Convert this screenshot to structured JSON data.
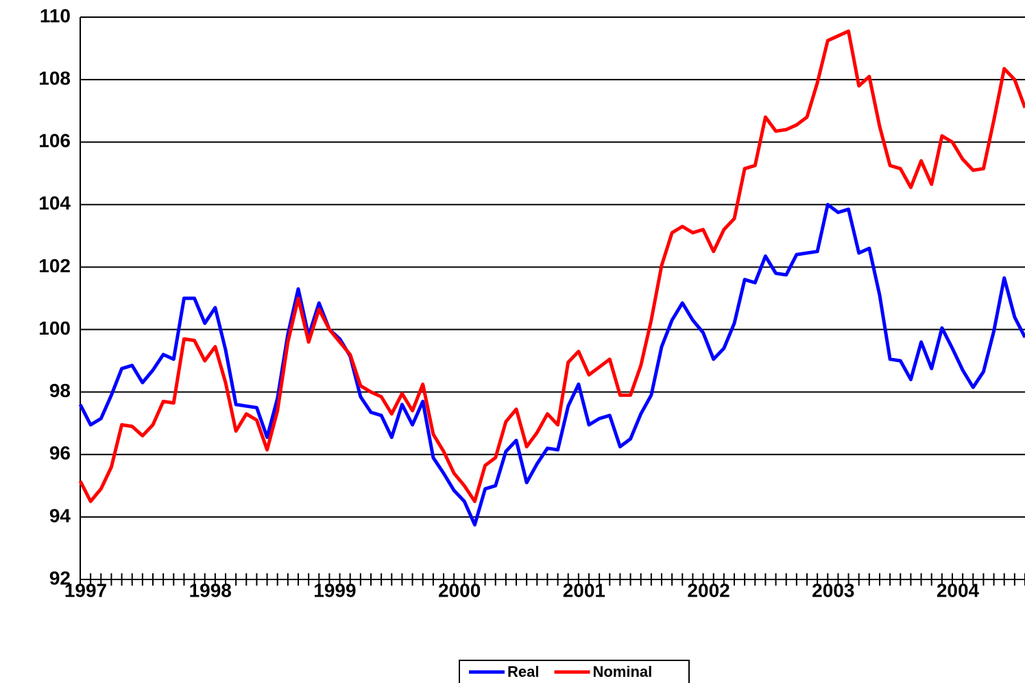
{
  "chart_data": {
    "type": "line",
    "categories": [
      "1997",
      null,
      null,
      null,
      null,
      null,
      null,
      null,
      null,
      null,
      null,
      null,
      "1998",
      null,
      null,
      null,
      null,
      null,
      null,
      null,
      null,
      null,
      null,
      null,
      "1999",
      null,
      null,
      null,
      null,
      null,
      null,
      null,
      null,
      null,
      null,
      null,
      "2000",
      null,
      null,
      null,
      null,
      null,
      null,
      null,
      null,
      null,
      null,
      null,
      "2001",
      null,
      null,
      null,
      null,
      null,
      null,
      null,
      null,
      null,
      null,
      null,
      "2002",
      null,
      null,
      null,
      null,
      null,
      null,
      null,
      null,
      null,
      null,
      null,
      "2003",
      null,
      null,
      null,
      null,
      null,
      null,
      null,
      null,
      null,
      null,
      null,
      "2004",
      null,
      null,
      null,
      null,
      null,
      null,
      null
    ],
    "series": [
      {
        "name": "Real",
        "color": "#0000ff",
        "values": [
          97.6,
          96.95,
          97.15,
          97.9,
          98.75,
          98.85,
          98.3,
          98.7,
          99.2,
          99.05,
          101.0,
          101.0,
          100.2,
          100.7,
          99.35,
          97.6,
          97.55,
          97.5,
          96.55,
          97.8,
          99.85,
          101.3,
          99.8,
          100.85,
          100.0,
          99.7,
          99.15,
          97.85,
          97.35,
          97.25,
          96.55,
          97.6,
          96.95,
          97.7,
          95.9,
          95.4,
          94.85,
          94.5,
          93.75,
          94.9,
          95.0,
          96.1,
          96.45,
          95.1,
          95.7,
          96.2,
          96.15,
          97.55,
          98.25,
          96.95,
          97.15,
          97.25,
          96.25,
          96.5,
          97.3,
          97.9,
          99.45,
          100.3,
          100.85,
          100.3,
          99.9,
          99.05,
          99.4,
          100.2,
          101.6,
          101.5,
          102.35,
          101.8,
          101.75,
          102.4,
          102.45,
          102.5,
          104.0,
          103.75,
          103.85,
          102.45,
          102.6,
          101.1,
          99.05,
          99.0,
          98.4,
          99.6,
          98.75,
          100.05,
          99.4,
          98.7,
          98.15,
          98.65,
          99.95,
          101.65,
          100.4,
          99.75
        ]
      },
      {
        "name": "Nominal",
        "color": "#ff0000",
        "values": [
          95.15,
          94.5,
          94.9,
          95.6,
          96.95,
          96.9,
          96.6,
          96.95,
          97.7,
          97.65,
          99.7,
          99.65,
          99.0,
          99.45,
          98.3,
          96.75,
          97.3,
          97.1,
          96.15,
          97.4,
          99.6,
          101.0,
          99.6,
          100.65,
          100.0,
          99.6,
          99.2,
          98.2,
          98.0,
          97.85,
          97.3,
          97.95,
          97.4,
          98.25,
          96.65,
          96.1,
          95.4,
          95.0,
          94.5,
          95.65,
          95.9,
          97.05,
          97.45,
          96.25,
          96.7,
          97.3,
          96.95,
          98.95,
          99.3,
          98.55,
          98.8,
          99.05,
          97.9,
          97.9,
          98.85,
          100.3,
          102.05,
          103.1,
          103.3,
          103.1,
          103.2,
          102.5,
          103.2,
          103.55,
          105.15,
          105.25,
          106.8,
          106.35,
          106.4,
          106.55,
          106.8,
          107.9,
          109.25,
          109.4,
          109.55,
          107.8,
          108.1,
          106.5,
          105.25,
          105.15,
          104.55,
          105.4,
          104.65,
          106.2,
          106.0,
          105.45,
          105.1,
          105.15,
          106.7,
          108.35,
          108.0,
          107.1
        ]
      }
    ],
    "ylim": [
      92,
      110
    ],
    "yticks": [
      92,
      94,
      96,
      98,
      100,
      102,
      104,
      106,
      108,
      110
    ],
    "grid": true,
    "legend": "bottom"
  }
}
